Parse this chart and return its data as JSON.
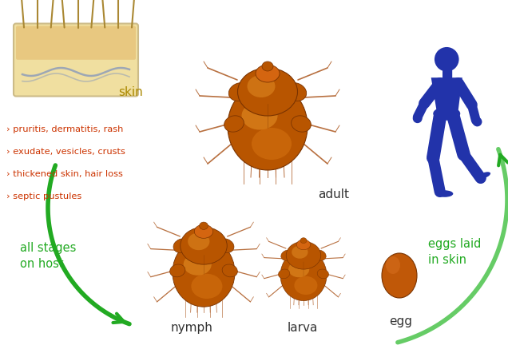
{
  "background_color": "#ffffff",
  "green_dark": "#22aa22",
  "green_light": "#66cc66",
  "red_text": "#cc3300",
  "dark_text": "#333333",
  "tan_text": "#aa8800",
  "mite_body": "#b85500",
  "mite_mid": "#d46510",
  "mite_light": "#e8851a",
  "mite_dark": "#7a3300",
  "mite_highlight": "#f0a030",
  "human_blue": "#2233aa",
  "egg_color": "#c05808",
  "egg_light": "#d97020",
  "skin_bg": "#f0dfa0",
  "skin_top": "#e8c880",
  "skin_wave": "#8899bb",
  "hair_color": "#aa8833",
  "labels": {
    "adult": "adult",
    "nymph": "nymph",
    "larva": "larva",
    "egg": "egg",
    "skin": "skin",
    "all_stages": "all stages\non host",
    "eggs_laid": "eggs laid\nin skin",
    "symptoms": [
      "› pruritis, dermatitis, rash",
      "› exudate, vesicles, crusts",
      "› thickened skin, hair loss",
      "› septic pustules"
    ]
  }
}
